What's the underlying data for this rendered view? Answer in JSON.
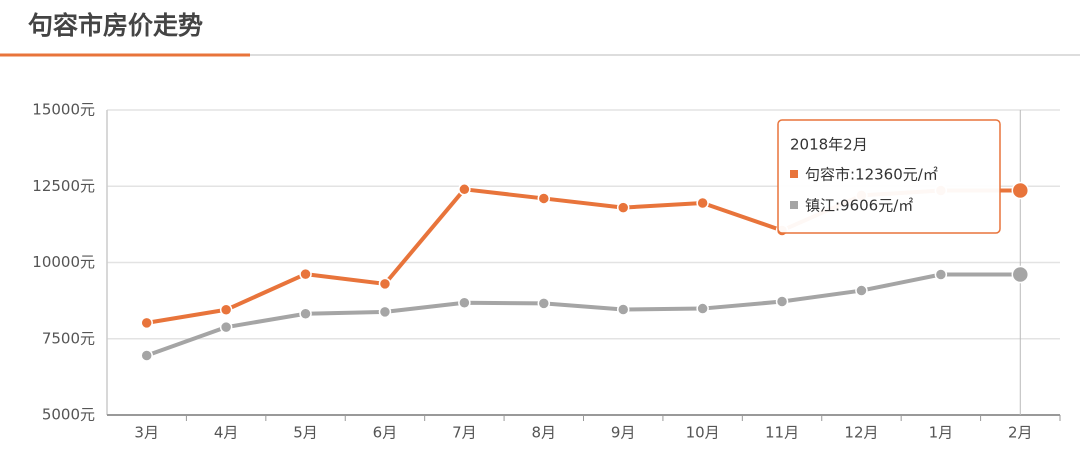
{
  "header": {
    "title": "句容市房价走势"
  },
  "chart_data": {
    "type": "line",
    "categories": [
      "3月",
      "4月",
      "5月",
      "6月",
      "7月",
      "8月",
      "9月",
      "10月",
      "11月",
      "12月",
      "1月",
      "2月"
    ],
    "series": [
      {
        "color": "#e8743b",
        "values": [
          8020,
          8450,
          9620,
          9300,
          12400,
          12100,
          11800,
          11950,
          11050,
          12200,
          12360,
          12360
        ]
      },
      {
        "color": "#a5a5a5",
        "values": [
          6950,
          7880,
          8320,
          8380,
          8680,
          8660,
          8460,
          8490,
          8720,
          9080,
          9606,
          9606
        ]
      }
    ],
    "ylim": [
      5000,
      15000
    ],
    "yticks": [
      {
        "value": 5000,
        "label": "5000元"
      },
      {
        "value": 7500,
        "label": "7500元"
      },
      {
        "value": 10000,
        "label": "10000元"
      },
      {
        "value": 12500,
        "label": "12500元"
      },
      {
        "value": 15000,
        "label": "15000元"
      }
    ],
    "grid": true,
    "tooltip": {
      "title": "2018年2月",
      "lines": [
        "句容市:12360元/㎡",
        "镇江:9606元/㎡"
      ]
    }
  }
}
